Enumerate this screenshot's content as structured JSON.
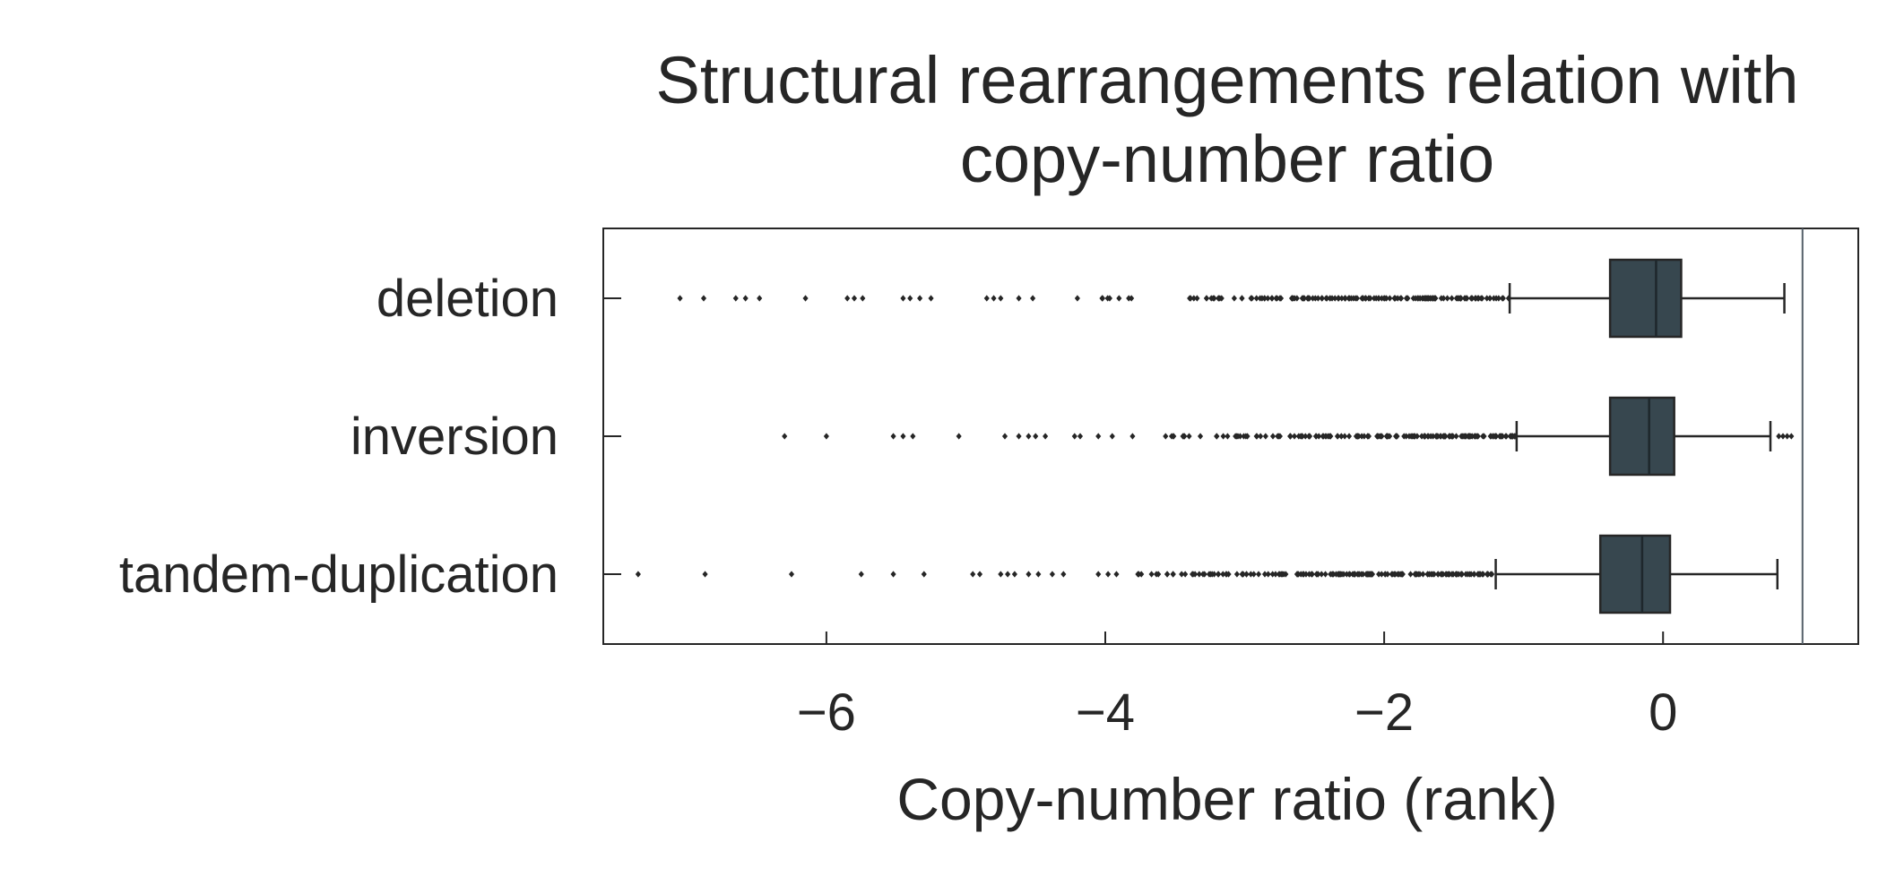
{
  "chart_data": {
    "type": "boxplot",
    "orientation": "horizontal",
    "title": "Structural rearrangements relation with copy-number ratio",
    "title_lines": [
      "Structural rearrangements relation with",
      "copy-number ratio"
    ],
    "xlabel": "Copy-number ratio (rank)",
    "ylabel": "",
    "xlim": [
      -7.6,
      1.4
    ],
    "xticks": [
      -6,
      -4,
      -2,
      0
    ],
    "xtick_labels": [
      "−6",
      "−4",
      "−2",
      "0"
    ],
    "reference_line_x": 1.0,
    "grid": false,
    "legend": "none",
    "colors": {
      "box": "#37474f",
      "line": "#262626",
      "text": "#262626",
      "ref_line": "#55606a"
    },
    "categories": [
      "deletion",
      "inversion",
      "tandem-duplication"
    ],
    "boxes": [
      {
        "category": "deletion",
        "whisker_low": -1.1,
        "q1": -0.38,
        "median": -0.05,
        "q3": 0.13,
        "whisker_high": 0.87,
        "outlier_range": [
          -7.05,
          -1.1
        ],
        "sparse_outliers": [
          -7.05,
          -6.88,
          -6.65,
          -6.58,
          -6.48,
          -6.15,
          -5.85,
          -5.8,
          -5.74,
          -5.45,
          -5.4,
          -5.33,
          -5.25,
          -4.85,
          -4.8,
          -4.75,
          -4.62,
          -4.52,
          -4.2
        ]
      },
      {
        "category": "inversion",
        "whisker_low": -1.05,
        "q1": -0.38,
        "median": -0.1,
        "q3": 0.08,
        "whisker_high": 0.77,
        "outlier_range": [
          -6.3,
          -1.05
        ],
        "sparse_outliers": [
          -6.3,
          -6.0,
          -5.52,
          -5.45,
          -5.38,
          -5.05,
          -4.72,
          -4.62,
          -4.55,
          -4.5,
          -4.43,
          -4.22,
          -4.18,
          -4.05,
          -3.95
        ],
        "high_outliers": [
          0.83,
          0.86,
          0.89,
          0.92
        ]
      },
      {
        "category": "tandem-duplication",
        "whisker_low": -1.2,
        "q1": -0.45,
        "median": -0.15,
        "q3": 0.05,
        "whisker_high": 0.82,
        "outlier_range": [
          -7.35,
          -1.2
        ],
        "sparse_outliers": [
          -7.35,
          -6.87,
          -6.25,
          -5.75,
          -5.52,
          -5.3,
          -4.95,
          -4.9,
          -4.75,
          -4.7,
          -4.65,
          -4.55,
          -4.48,
          -4.38,
          -4.3,
          -4.05,
          -3.98,
          -3.92
        ]
      }
    ]
  }
}
